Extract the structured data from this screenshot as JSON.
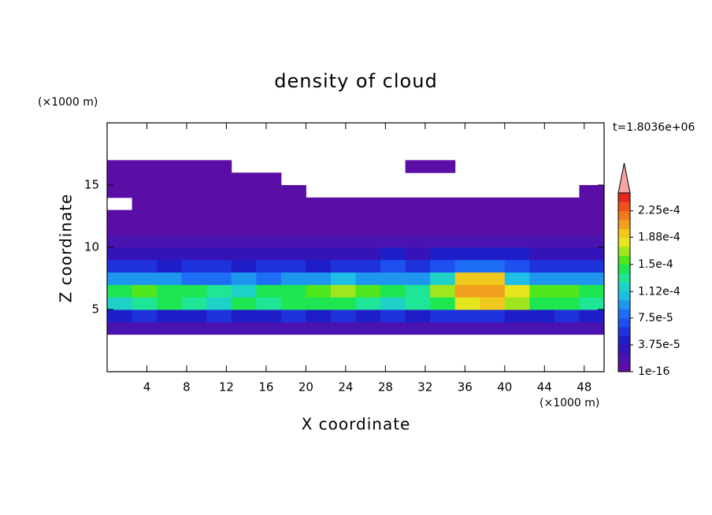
{
  "chart_data": {
    "type": "contour",
    "title": "density of cloud",
    "xlabel": "X coordinate",
    "ylabel": "Z coordinate",
    "xunit": "(×1000 m)",
    "yunit": "(×1000 m)",
    "annotation": "t=1.8036e+06",
    "xlim": [
      0,
      50
    ],
    "xticks": [
      4,
      8,
      12,
      16,
      20,
      24,
      28,
      32,
      36,
      40,
      44,
      48
    ],
    "ylim": [
      0,
      20
    ],
    "yticks": [
      5,
      10,
      15
    ],
    "x": [
      1.25,
      3.75,
      6.25,
      8.75,
      11.25,
      13.75,
      16.25,
      18.75,
      21.25,
      23.75,
      26.25,
      28.75,
      31.25,
      33.75,
      36.25,
      38.75,
      41.25,
      43.75,
      46.25,
      48.75
    ],
    "z": [
      3.5,
      4.5,
      5.5,
      6.5,
      7.5,
      8.5,
      9.5,
      10.5,
      11.5,
      12.5,
      13.5,
      14.5,
      15.5,
      16.5
    ],
    "values": [
      [
        1.5e-05,
        1.5e-05,
        1.5e-05,
        1.5e-05,
        1.5e-05,
        1.5e-05,
        1.5e-05,
        1.5e-05,
        1.5e-05,
        1.5e-05,
        1.5e-05,
        1.5e-05,
        1.5e-05,
        1.5e-05,
        1.5e-05,
        1.5e-05,
        1.5e-05,
        1.5e-05,
        1.5e-05,
        1.5e-05
      ],
      [
        5e-05,
        6e-05,
        5e-05,
        5e-05,
        6e-05,
        5e-05,
        5e-05,
        6e-05,
        5e-05,
        6e-05,
        5e-05,
        6e-05,
        5e-05,
        6e-05,
        6e-05,
        6e-05,
        5e-05,
        5e-05,
        6e-05,
        5e-05
      ],
      [
        0.00012,
        0.00013,
        0.00014,
        0.00013,
        0.00012,
        0.00014,
        0.00013,
        0.00014,
        0.00015,
        0.00014,
        0.00013,
        0.00012,
        0.00013,
        0.00014,
        0.00018,
        0.00019,
        0.00017,
        0.00015,
        0.00014,
        0.00013
      ],
      [
        0.00014,
        0.00016,
        0.00015,
        0.00014,
        0.00013,
        0.00012,
        0.00014,
        0.00015,
        0.00016,
        0.00017,
        0.00016,
        0.00014,
        0.00013,
        0.00017,
        0.00021,
        0.00021,
        0.00018,
        0.00016,
        0.00016,
        0.00015
      ],
      [
        9e-05,
        0.0001,
        9e-05,
        8e-05,
        8e-05,
        9e-05,
        8e-05,
        9e-05,
        0.0001,
        0.00011,
        0.0001,
        0.0001,
        9e-05,
        0.00012,
        0.0002,
        0.00019,
        0.00011,
        0.0001,
        0.0001,
        9e-05
      ],
      [
        6e-05,
        6e-05,
        5e-05,
        6e-05,
        6e-05,
        5e-05,
        6e-05,
        6e-05,
        5e-05,
        6e-05,
        6e-05,
        7e-05,
        6e-05,
        7e-05,
        8e-05,
        8e-05,
        7e-05,
        6e-05,
        6e-05,
        6e-05
      ],
      [
        3.5e-05,
        3.5e-05,
        3e-05,
        3.5e-05,
        3.5e-05,
        3e-05,
        3.5e-05,
        3.5e-05,
        3e-05,
        3.5e-05,
        3.5e-05,
        4e-05,
        3.5e-05,
        4e-05,
        4.5e-05,
        4e-05,
        4e-05,
        3.5e-05,
        3.5e-05,
        3.5e-05
      ],
      [
        2e-05,
        2e-05,
        2e-05,
        2e-05,
        2e-05,
        2e-05,
        2e-05,
        2e-05,
        2e-05,
        2e-05,
        2e-05,
        2e-05,
        2e-05,
        2e-05,
        2e-05,
        2e-05,
        2e-05,
        2e-05,
        2e-05,
        2e-05
      ],
      [
        8e-06,
        8e-06,
        8e-06,
        8e-06,
        8e-06,
        8e-06,
        8e-06,
        8e-06,
        8e-06,
        8e-06,
        8e-06,
        8e-06,
        8e-06,
        8e-06,
        8e-06,
        8e-06,
        8e-06,
        8e-06,
        8e-06,
        8e-06
      ],
      [
        5e-06,
        5e-06,
        5e-06,
        5e-06,
        5e-06,
        5e-06,
        5e-06,
        5e-06,
        5e-06,
        5e-06,
        5e-06,
        5e-06,
        5e-06,
        5e-06,
        5e-06,
        5e-06,
        5e-06,
        5e-06,
        5e-06,
        5e-06
      ],
      [
        null,
        3e-06,
        3e-06,
        3e-06,
        3e-06,
        3e-06,
        3e-06,
        3e-06,
        3e-06,
        3e-06,
        3e-06,
        3e-06,
        3e-06,
        3e-06,
        3e-06,
        3e-06,
        3e-06,
        3e-06,
        3e-06,
        3e-06
      ],
      [
        2e-06,
        2e-06,
        2e-06,
        2e-06,
        2e-06,
        2e-06,
        2e-06,
        2e-06,
        null,
        null,
        null,
        null,
        null,
        null,
        null,
        null,
        null,
        null,
        null,
        2e-06
      ],
      [
        2e-06,
        2e-06,
        2e-06,
        2e-06,
        2e-06,
        2e-06,
        2e-06,
        null,
        null,
        null,
        null,
        null,
        null,
        null,
        null,
        null,
        null,
        null,
        null,
        null
      ],
      [
        2e-06,
        2e-06,
        2e-06,
        2e-06,
        2e-06,
        null,
        null,
        null,
        null,
        null,
        null,
        null,
        2e-06,
        2e-06,
        null,
        null,
        null,
        null,
        null,
        null
      ]
    ],
    "colorbar": {
      "lim": [
        1e-16,
        0.00025
      ],
      "ticks": [
        {
          "value": 1e-16,
          "label": "1e-16"
        },
        {
          "value": 3.75e-05,
          "label": "3.75e-5"
        },
        {
          "value": 7.5e-05,
          "label": "7.5e-5"
        },
        {
          "value": 0.000112,
          "label": "1.12e-4"
        },
        {
          "value": 0.00015,
          "label": "1.5e-4"
        },
        {
          "value": 0.000188,
          "label": "1.88e-4"
        },
        {
          "value": 0.000225,
          "label": "2.25e-4"
        }
      ],
      "colors": [
        "#5b0ea6",
        "#4a12b0",
        "#3414b8",
        "#1e1ec8",
        "#1e32dc",
        "#1e50f0",
        "#1e6ef5",
        "#1e96f0",
        "#1ebee6",
        "#1ed2c8",
        "#1ee696",
        "#1ee650",
        "#50e61e",
        "#a0e61e",
        "#e6e61e",
        "#f0c81e",
        "#f0a01e",
        "#f0781e",
        "#f0501e",
        "#e6281e"
      ],
      "over_color": "#f5a5a5"
    }
  }
}
